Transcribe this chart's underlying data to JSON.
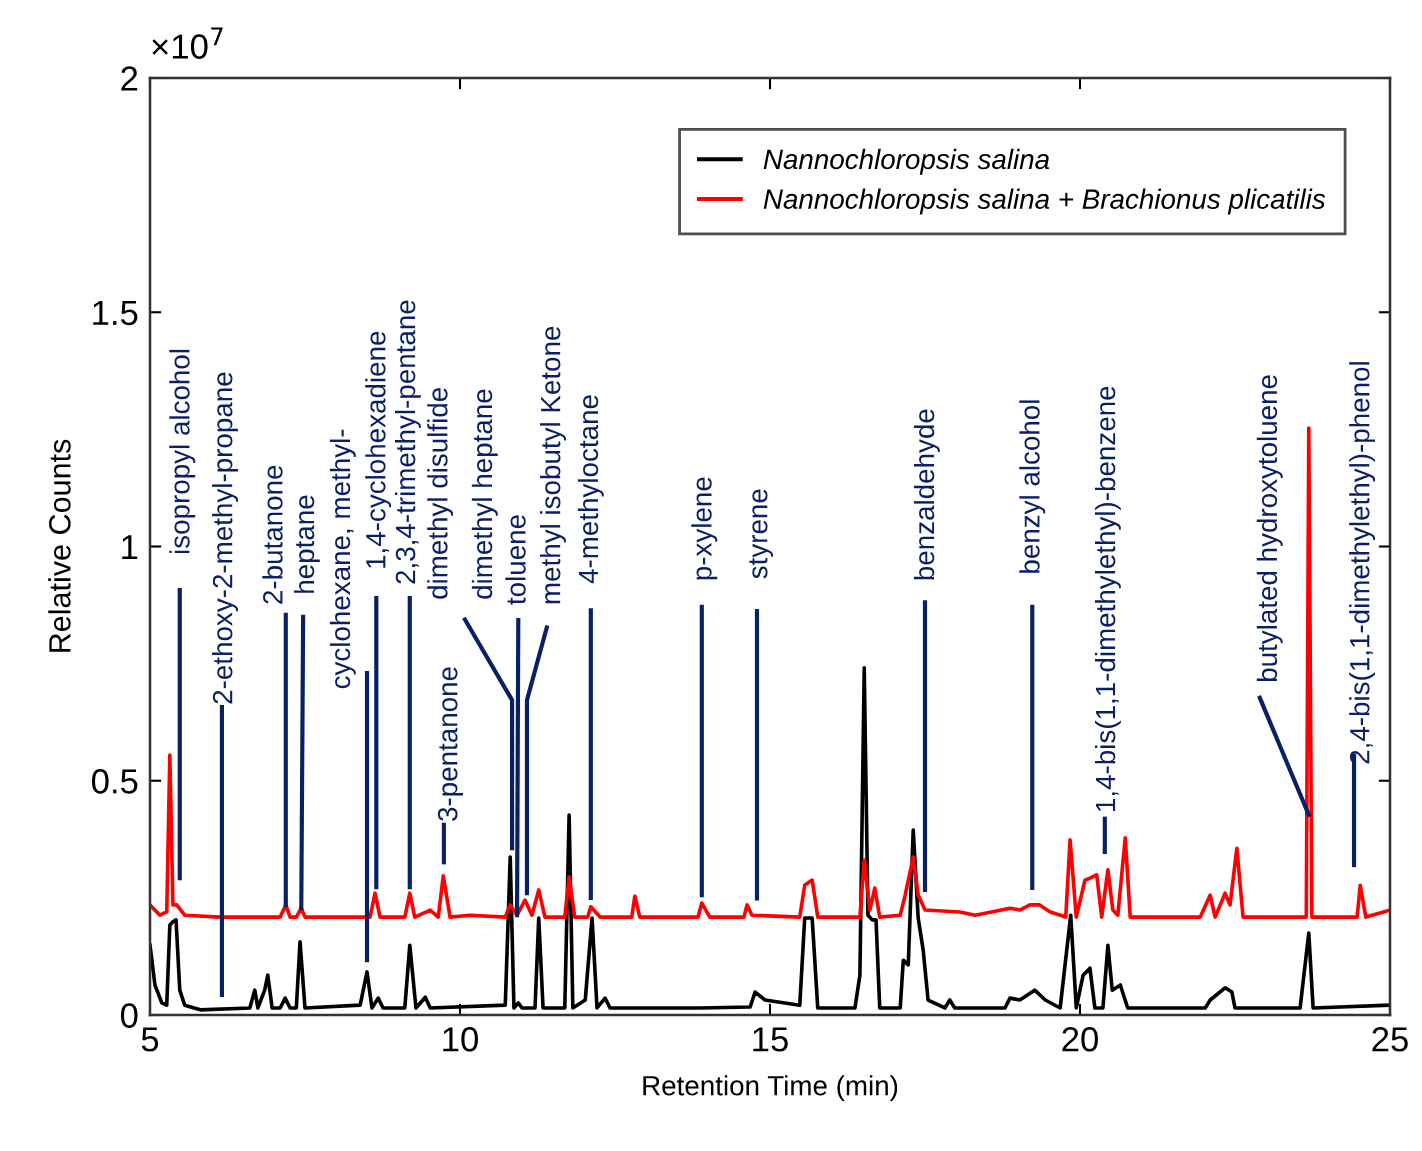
{
  "chart_data": {
    "type": "line",
    "xlabel": "Retention Time (min)",
    "ylabel": "Relative Counts",
    "xlim": [
      5,
      25
    ],
    "xticks": [
      5,
      10,
      15,
      20,
      25
    ],
    "ylim": [
      0,
      2
    ],
    "yticks": [
      0,
      0.5,
      1,
      1.5,
      2
    ],
    "grid": false,
    "legend": "top right",
    "line_style": "solid",
    "marker": "none",
    "series": [
      {
        "name": "Nannochloropsis salina",
        "color": "#000000",
        "x": [
          5.0,
          5.08,
          5.19,
          5.27,
          5.32,
          5.37,
          5.42,
          5.48,
          5.56,
          5.81,
          6.61,
          6.69,
          6.74,
          6.85,
          6.9,
          6.97,
          7.1,
          7.18,
          7.26,
          7.36,
          7.42,
          7.5,
          8.39,
          8.5,
          8.58,
          8.68,
          8.76,
          9.11,
          9.19,
          9.29,
          9.44,
          9.52,
          10.73,
          10.81,
          10.87,
          10.94,
          11.0,
          11.21,
          11.27,
          11.34,
          11.69,
          11.76,
          11.82,
          12.02,
          12.13,
          12.21,
          12.34,
          12.42,
          13.87,
          14.68,
          14.76,
          14.92,
          15.48,
          15.56,
          15.68,
          15.77,
          16.37,
          16.45,
          16.52,
          16.58,
          16.65,
          16.71,
          16.77,
          17.1,
          17.15,
          17.23,
          17.31,
          17.39,
          17.47,
          17.55,
          17.82,
          17.9,
          17.98,
          18.79,
          18.87,
          19.03,
          19.27,
          19.44,
          19.68,
          19.85,
          19.94,
          20.05,
          20.16,
          20.24,
          20.37,
          20.45,
          20.52,
          20.65,
          20.77,
          22.02,
          22.1,
          22.34,
          22.45,
          22.5,
          23.55,
          23.69,
          23.76,
          25.0
        ],
        "values": [
          0.149,
          0.064,
          0.026,
          0.021,
          0.192,
          0.199,
          0.203,
          0.053,
          0.021,
          0.011,
          0.015,
          0.053,
          0.015,
          0.053,
          0.085,
          0.015,
          0.015,
          0.036,
          0.015,
          0.015,
          0.156,
          0.015,
          0.021,
          0.092,
          0.015,
          0.036,
          0.015,
          0.015,
          0.149,
          0.015,
          0.038,
          0.015,
          0.021,
          0.337,
          0.015,
          0.026,
          0.015,
          0.015,
          0.207,
          0.015,
          0.015,
          0.427,
          0.015,
          0.032,
          0.207,
          0.015,
          0.036,
          0.015,
          0.015,
          0.017,
          0.049,
          0.032,
          0.021,
          0.207,
          0.207,
          0.015,
          0.015,
          0.085,
          0.741,
          0.213,
          0.203,
          0.203,
          0.015,
          0.015,
          0.117,
          0.107,
          0.395,
          0.207,
          0.139,
          0.032,
          0.015,
          0.032,
          0.015,
          0.015,
          0.036,
          0.032,
          0.053,
          0.032,
          0.015,
          0.213,
          0.015,
          0.085,
          0.1,
          0.015,
          0.015,
          0.149,
          0.053,
          0.064,
          0.015,
          0.015,
          0.032,
          0.058,
          0.049,
          0.015,
          0.015,
          0.175,
          0.015,
          0.021
        ]
      },
      {
        "name": "Nannochloropsis salina + Brachionus plicatilis",
        "color": "#ff0000",
        "x": [
          5.0,
          5.16,
          5.27,
          5.32,
          5.37,
          5.43,
          5.56,
          6.13,
          7.1,
          7.19,
          7.26,
          7.36,
          7.44,
          7.5,
          8.55,
          8.63,
          8.71,
          9.11,
          9.19,
          9.27,
          9.52,
          9.65,
          9.73,
          9.84,
          10.16,
          10.73,
          10.81,
          10.92,
          11.05,
          11.16,
          11.27,
          11.37,
          11.69,
          11.76,
          11.85,
          12.06,
          12.11,
          12.26,
          12.77,
          12.82,
          12.9,
          13.84,
          13.9,
          14.03,
          14.58,
          14.63,
          14.71,
          15.48,
          15.56,
          15.68,
          15.77,
          16.45,
          16.52,
          16.61,
          16.69,
          16.77,
          17.1,
          17.18,
          17.31,
          17.39,
          17.5,
          18.06,
          18.31,
          18.87,
          19.03,
          19.19,
          19.35,
          19.52,
          19.77,
          19.84,
          19.94,
          20.08,
          20.16,
          20.27,
          20.35,
          20.45,
          20.53,
          20.61,
          20.73,
          20.81,
          21.94,
          22.1,
          22.18,
          22.34,
          22.42,
          22.53,
          22.63,
          23.55,
          23.65,
          23.69,
          23.74,
          23.81,
          24.35,
          24.47,
          24.52,
          24.61,
          25.0
        ],
        "values": [
          0.235,
          0.213,
          0.22,
          0.555,
          0.235,
          0.235,
          0.213,
          0.209,
          0.209,
          0.235,
          0.209,
          0.209,
          0.228,
          0.209,
          0.209,
          0.26,
          0.209,
          0.209,
          0.26,
          0.209,
          0.224,
          0.209,
          0.297,
          0.209,
          0.213,
          0.209,
          0.235,
          0.213,
          0.245,
          0.213,
          0.267,
          0.209,
          0.209,
          0.295,
          0.209,
          0.209,
          0.231,
          0.209,
          0.209,
          0.254,
          0.209,
          0.209,
          0.239,
          0.209,
          0.209,
          0.235,
          0.213,
          0.209,
          0.277,
          0.288,
          0.209,
          0.209,
          0.331,
          0.224,
          0.271,
          0.209,
          0.213,
          0.256,
          0.337,
          0.256,
          0.224,
          0.22,
          0.213,
          0.228,
          0.224,
          0.235,
          0.235,
          0.22,
          0.209,
          0.374,
          0.209,
          0.288,
          0.292,
          0.299,
          0.209,
          0.31,
          0.224,
          0.213,
          0.378,
          0.209,
          0.209,
          0.256,
          0.209,
          0.26,
          0.235,
          0.356,
          0.209,
          0.209,
          0.209,
          1.253,
          0.209,
          0.209,
          0.209,
          0.209,
          0.277,
          0.209,
          0.224
        ]
      }
    ],
    "annotations": [
      "×10$^{7}$",
      "isopropyl alcohol",
      "2-ethoxy-2-methyl-propane",
      {
        "text": "2-butanone",
        "x": 7.19,
        "y": 0.235
      },
      {
        "text": "heptane",
        "x": 7.44,
        "y": 0.228
      },
      "cyclohexane, methyl-",
      "1,4-cyclohexadiene",
      "2,3,4-trimethyl-pentane",
      "dimethyl disulfide",
      "3-pentanone",
      "dimethyl heptane",
      {
        "text": "toluene",
        "x": 10.92,
        "y": 0.213
      },
      "methyl isobutyl Ketone",
      "4-methyloctane",
      "p-xylene",
      "styrene",
      "benzaldehyde",
      "benzyl alcohol",
      "1,4-bis(1,1-dimethylethyl)-benzene",
      {
        "text": "butylated hydroxytoluene",
        "x": 23.69,
        "y": 0.427
      },
      "2,4-bis(1,1-dimethylethyl)-phenol"
    ]
  }
}
